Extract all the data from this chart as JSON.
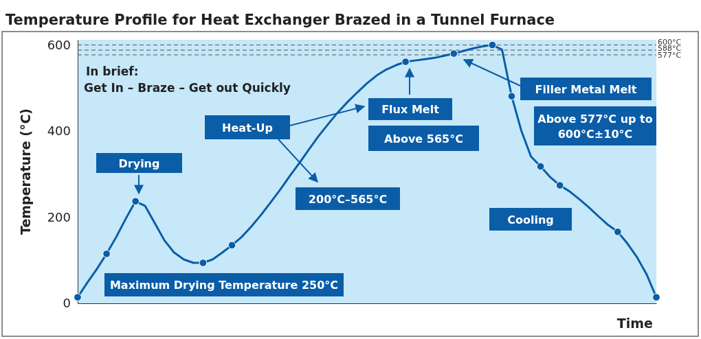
{
  "chart_data": {
    "type": "line",
    "title": "Temperature Profile for Heat Exchanger Brazed in a Tunnel Furnace",
    "xlabel": "Time",
    "ylabel": "Temperature (°C)",
    "categories": [
      null,
      null,
      null,
      null,
      null,
      null,
      null,
      null,
      null,
      null,
      null,
      null,
      null,
      null,
      null,
      null,
      null,
      null,
      null,
      null,
      null,
      null,
      null,
      null,
      null,
      null,
      null,
      null,
      null,
      null,
      null,
      null,
      null,
      null,
      null,
      null,
      null,
      null,
      null,
      null,
      null,
      null,
      null,
      null,
      null,
      null,
      null,
      null,
      null,
      null,
      null,
      null,
      null,
      null,
      null,
      null,
      null,
      null,
      null,
      null,
      null
    ],
    "ylim": [
      0,
      612
    ],
    "yticks": [
      0,
      200,
      400,
      600
    ],
    "series": [
      {
        "color": "#0b5da8",
        "values": [
          14,
          48,
          80,
          115,
          154,
          197,
          237,
          226,
          186,
          146,
          118,
          102,
          94,
          94,
          102,
          118,
          135,
          154,
          178,
          205,
          234,
          264,
          296,
          326,
          358,
          389,
          417,
          444,
          468,
          490,
          511,
          529,
          543,
          553,
          561,
          564,
          567,
          570,
          575,
          580,
          586,
          592,
          597,
          600,
          589,
          481,
          401,
          341,
          318,
          293,
          274,
          260,
          242,
          223,
          202,
          182,
          166,
          139,
          107,
          67,
          14
        ]
      },
      {
        "type": "scatter",
        "color": "#0b5da8",
        "marker": "circle",
        "values": [
          14,
          null,
          null,
          115,
          null,
          null,
          237,
          null,
          null,
          null,
          null,
          null,
          null,
          94,
          null,
          null,
          135,
          null,
          null,
          null,
          null,
          null,
          null,
          null,
          null,
          null,
          null,
          null,
          null,
          null,
          null,
          null,
          null,
          null,
          561,
          null,
          null,
          null,
          null,
          580,
          null,
          null,
          null,
          600,
          null,
          481,
          null,
          null,
          318,
          null,
          274,
          null,
          null,
          null,
          null,
          null,
          166,
          null,
          null,
          null,
          14
        ]
      }
    ],
    "ref_lines": [
      {
        "axis": "y",
        "value": 600,
        "label": "600°C",
        "line_style": "dashed",
        "color": "#555555"
      },
      {
        "axis": "y",
        "value": 588,
        "label": "588°C",
        "line_style": "dashed",
        "color": "#555555"
      },
      {
        "axis": "y",
        "value": 577,
        "label": "577°C",
        "line_style": "dashed",
        "color": "#555555"
      }
    ],
    "annotations": [
      "Drying",
      "Maximum Drying Temperature 250°C",
      "Heat-Up",
      "200°C–565°C",
      "Flux Melt",
      "Above 565°C",
      "Filler Metal Melt",
      "Above 577°C up to 600°C±10°C",
      "Cooling",
      "In brief:",
      "Get In – Braze – Get out Quickly"
    ]
  }
}
